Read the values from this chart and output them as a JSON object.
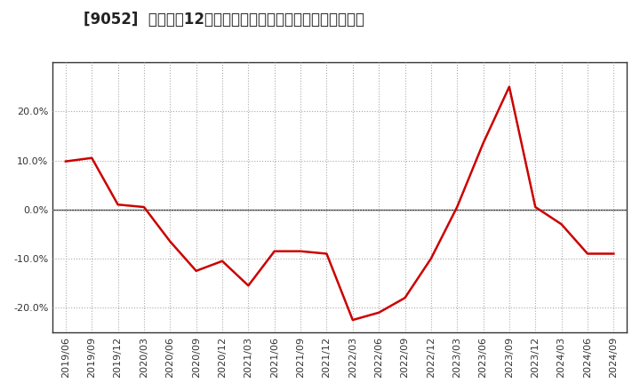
{
  "title": "[9052]  売上高の12か月移動合計の対前年同期増減率の推移",
  "x_labels": [
    "2019/06",
    "2019/09",
    "2019/12",
    "2020/03",
    "2020/06",
    "2020/09",
    "2020/12",
    "2021/03",
    "2021/06",
    "2021/09",
    "2021/12",
    "2022/03",
    "2022/06",
    "2022/09",
    "2022/12",
    "2023/03",
    "2023/06",
    "2023/09",
    "2023/12",
    "2024/03",
    "2024/06",
    "2024/09"
  ],
  "y_values": [
    9.8,
    10.5,
    1.0,
    0.5,
    -6.5,
    -12.5,
    -10.5,
    -15.5,
    -8.5,
    -8.5,
    -9.0,
    -22.5,
    -21.0,
    -18.0,
    -10.0,
    0.5,
    13.5,
    25.0,
    0.5,
    -3.0,
    -9.0,
    -9.0
  ],
  "line_color": "#cc0000",
  "background_color": "#ffffff",
  "plot_bg_color": "#ffffff",
  "grid_color": "#aaaaaa",
  "zero_line_color": "#333333",
  "border_color": "#333333",
  "ylim": [
    -25,
    30
  ],
  "yticks": [
    -20.0,
    -10.0,
    0.0,
    10.0,
    20.0
  ],
  "ytick_labels": [
    "-20.0%",
    "-10.0%",
    "0.0%",
    "10.0%",
    "20.0%"
  ],
  "title_fontsize": 12,
  "tick_fontsize": 8,
  "title_color": "#222222"
}
